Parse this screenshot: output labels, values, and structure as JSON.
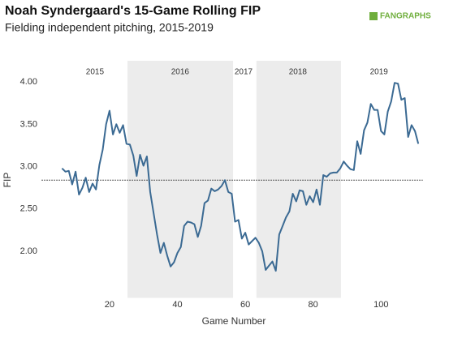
{
  "chart_data": {
    "type": "line",
    "title": "Noah Syndergaard's 15-Game Rolling FIP",
    "subtitle": "Fielding independent pitching, 2015-2019",
    "logo": "FANGRAPHS",
    "x_label": "Game Number",
    "y_label": "FIP",
    "xlim": [
      0,
      113
    ],
    "ylim": [
      1.45,
      4.25
    ],
    "xticks": [
      20,
      40,
      60,
      80,
      100
    ],
    "yticks": [
      {
        "value": 2,
        "label": "2.00"
      },
      {
        "value": 2.5,
        "label": "2.50"
      },
      {
        "value": 3,
        "label": "3.00"
      },
      {
        "value": 3.5,
        "label": "3.50"
      },
      {
        "value": 4,
        "label": "4.00"
      }
    ],
    "reference_line": 2.84,
    "regions": [
      {
        "start": 25.3,
        "end": 56.4,
        "color": "#ececec"
      },
      {
        "start": 63.3,
        "end": 88.2,
        "color": "#ececec"
      }
    ],
    "year_labels": [
      {
        "label": "2015",
        "x": 15.7
      },
      {
        "label": "2016",
        "x": 40.8
      },
      {
        "label": "2017",
        "x": 59.5
      },
      {
        "label": "2018",
        "x": 75.5
      },
      {
        "label": "2019",
        "x": 99.4
      }
    ],
    "x": [
      6,
      7,
      8,
      9,
      10,
      11,
      12,
      13,
      14,
      15,
      16,
      17,
      18,
      19,
      20,
      21,
      22,
      23,
      24,
      25,
      26,
      27,
      28,
      29,
      30,
      31,
      32,
      33,
      34,
      35,
      36,
      37,
      38,
      39,
      40,
      41,
      42,
      43,
      44,
      45,
      46,
      47,
      48,
      49,
      50,
      51,
      52,
      53,
      54,
      55,
      56,
      57,
      58,
      59,
      60,
      61,
      62,
      63,
      64,
      65,
      66,
      67,
      68,
      69,
      70,
      71,
      72,
      73,
      74,
      75,
      76,
      77,
      78,
      79,
      80,
      81,
      82,
      83,
      84,
      85,
      86,
      87,
      88,
      89,
      90,
      91,
      92,
      93,
      94,
      95,
      96,
      97,
      98,
      99,
      100,
      101,
      102,
      103,
      104,
      105,
      106,
      107,
      108,
      109,
      110,
      111
    ],
    "series": [
      {
        "color": "#3b6a93",
        "values": [
          2.98,
          2.94,
          2.95,
          2.79,
          2.94,
          2.67,
          2.75,
          2.87,
          2.7,
          2.8,
          2.73,
          3.02,
          3.2,
          3.5,
          3.66,
          3.38,
          3.5,
          3.4,
          3.49,
          3.27,
          3.26,
          3.13,
          2.89,
          3.14,
          3.01,
          3.12,
          2.7,
          2.45,
          2.2,
          1.98,
          2.1,
          1.95,
          1.82,
          1.87,
          1.98,
          2.05,
          2.3,
          2.35,
          2.34,
          2.32,
          2.17,
          2.3,
          2.57,
          2.6,
          2.74,
          2.71,
          2.73,
          2.77,
          2.84,
          2.7,
          2.68,
          2.35,
          2.37,
          2.15,
          2.22,
          2.08,
          2.12,
          2.16,
          2.1,
          2.0,
          1.78,
          1.83,
          1.88,
          1.77,
          2.2,
          2.3,
          2.4,
          2.47,
          2.68,
          2.59,
          2.72,
          2.71,
          2.55,
          2.65,
          2.58,
          2.73,
          2.55,
          2.9,
          2.88,
          2.92,
          2.93,
          2.93,
          2.98,
          3.06,
          3.01,
          2.97,
          2.96,
          3.3,
          3.15,
          3.43,
          3.52,
          3.74,
          3.67,
          3.67,
          3.42,
          3.38,
          3.65,
          3.77,
          3.99,
          3.98,
          3.79,
          3.81,
          3.35,
          3.49,
          3.42,
          3.27
        ]
      }
    ]
  }
}
